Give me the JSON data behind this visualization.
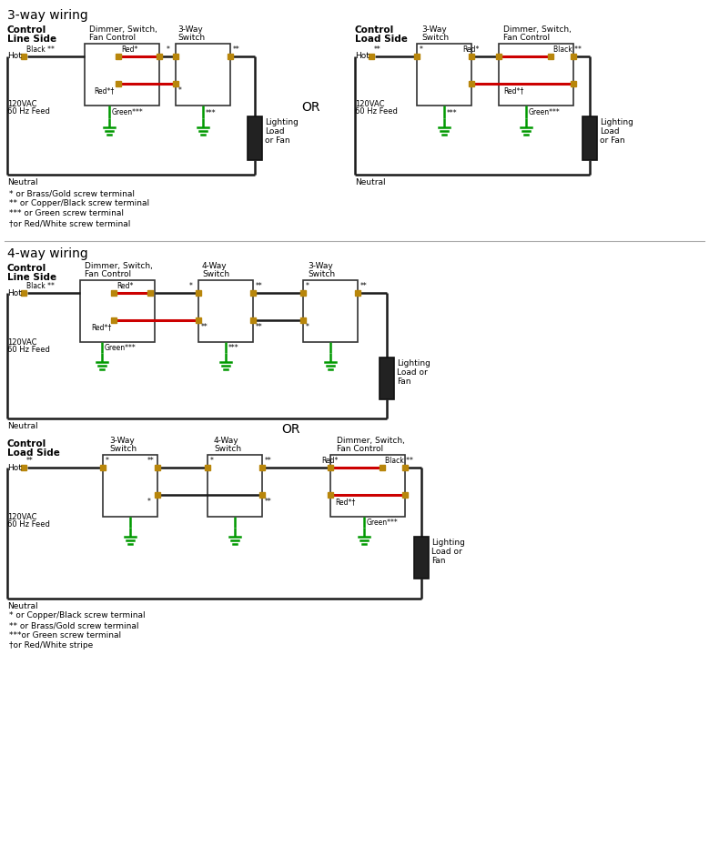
{
  "title_3way": "3-way wiring",
  "title_4way": "4-way wiring",
  "wire_black": "#1a1a1a",
  "wire_red": "#cc0000",
  "wire_green": "#009900",
  "terminal_gold": "#b8860b",
  "note_3way": [
    "* or Brass/Gold screw terminal",
    "** or Copper/Black screw terminal",
    "*** or Green screw terminal",
    "†or Red/White screw terminal"
  ],
  "note_4way": [
    "* or Copper/Black screw terminal",
    "** or Brass/Gold screw terminal",
    "***or Green screw terminal",
    "†or Red/White stripe"
  ]
}
